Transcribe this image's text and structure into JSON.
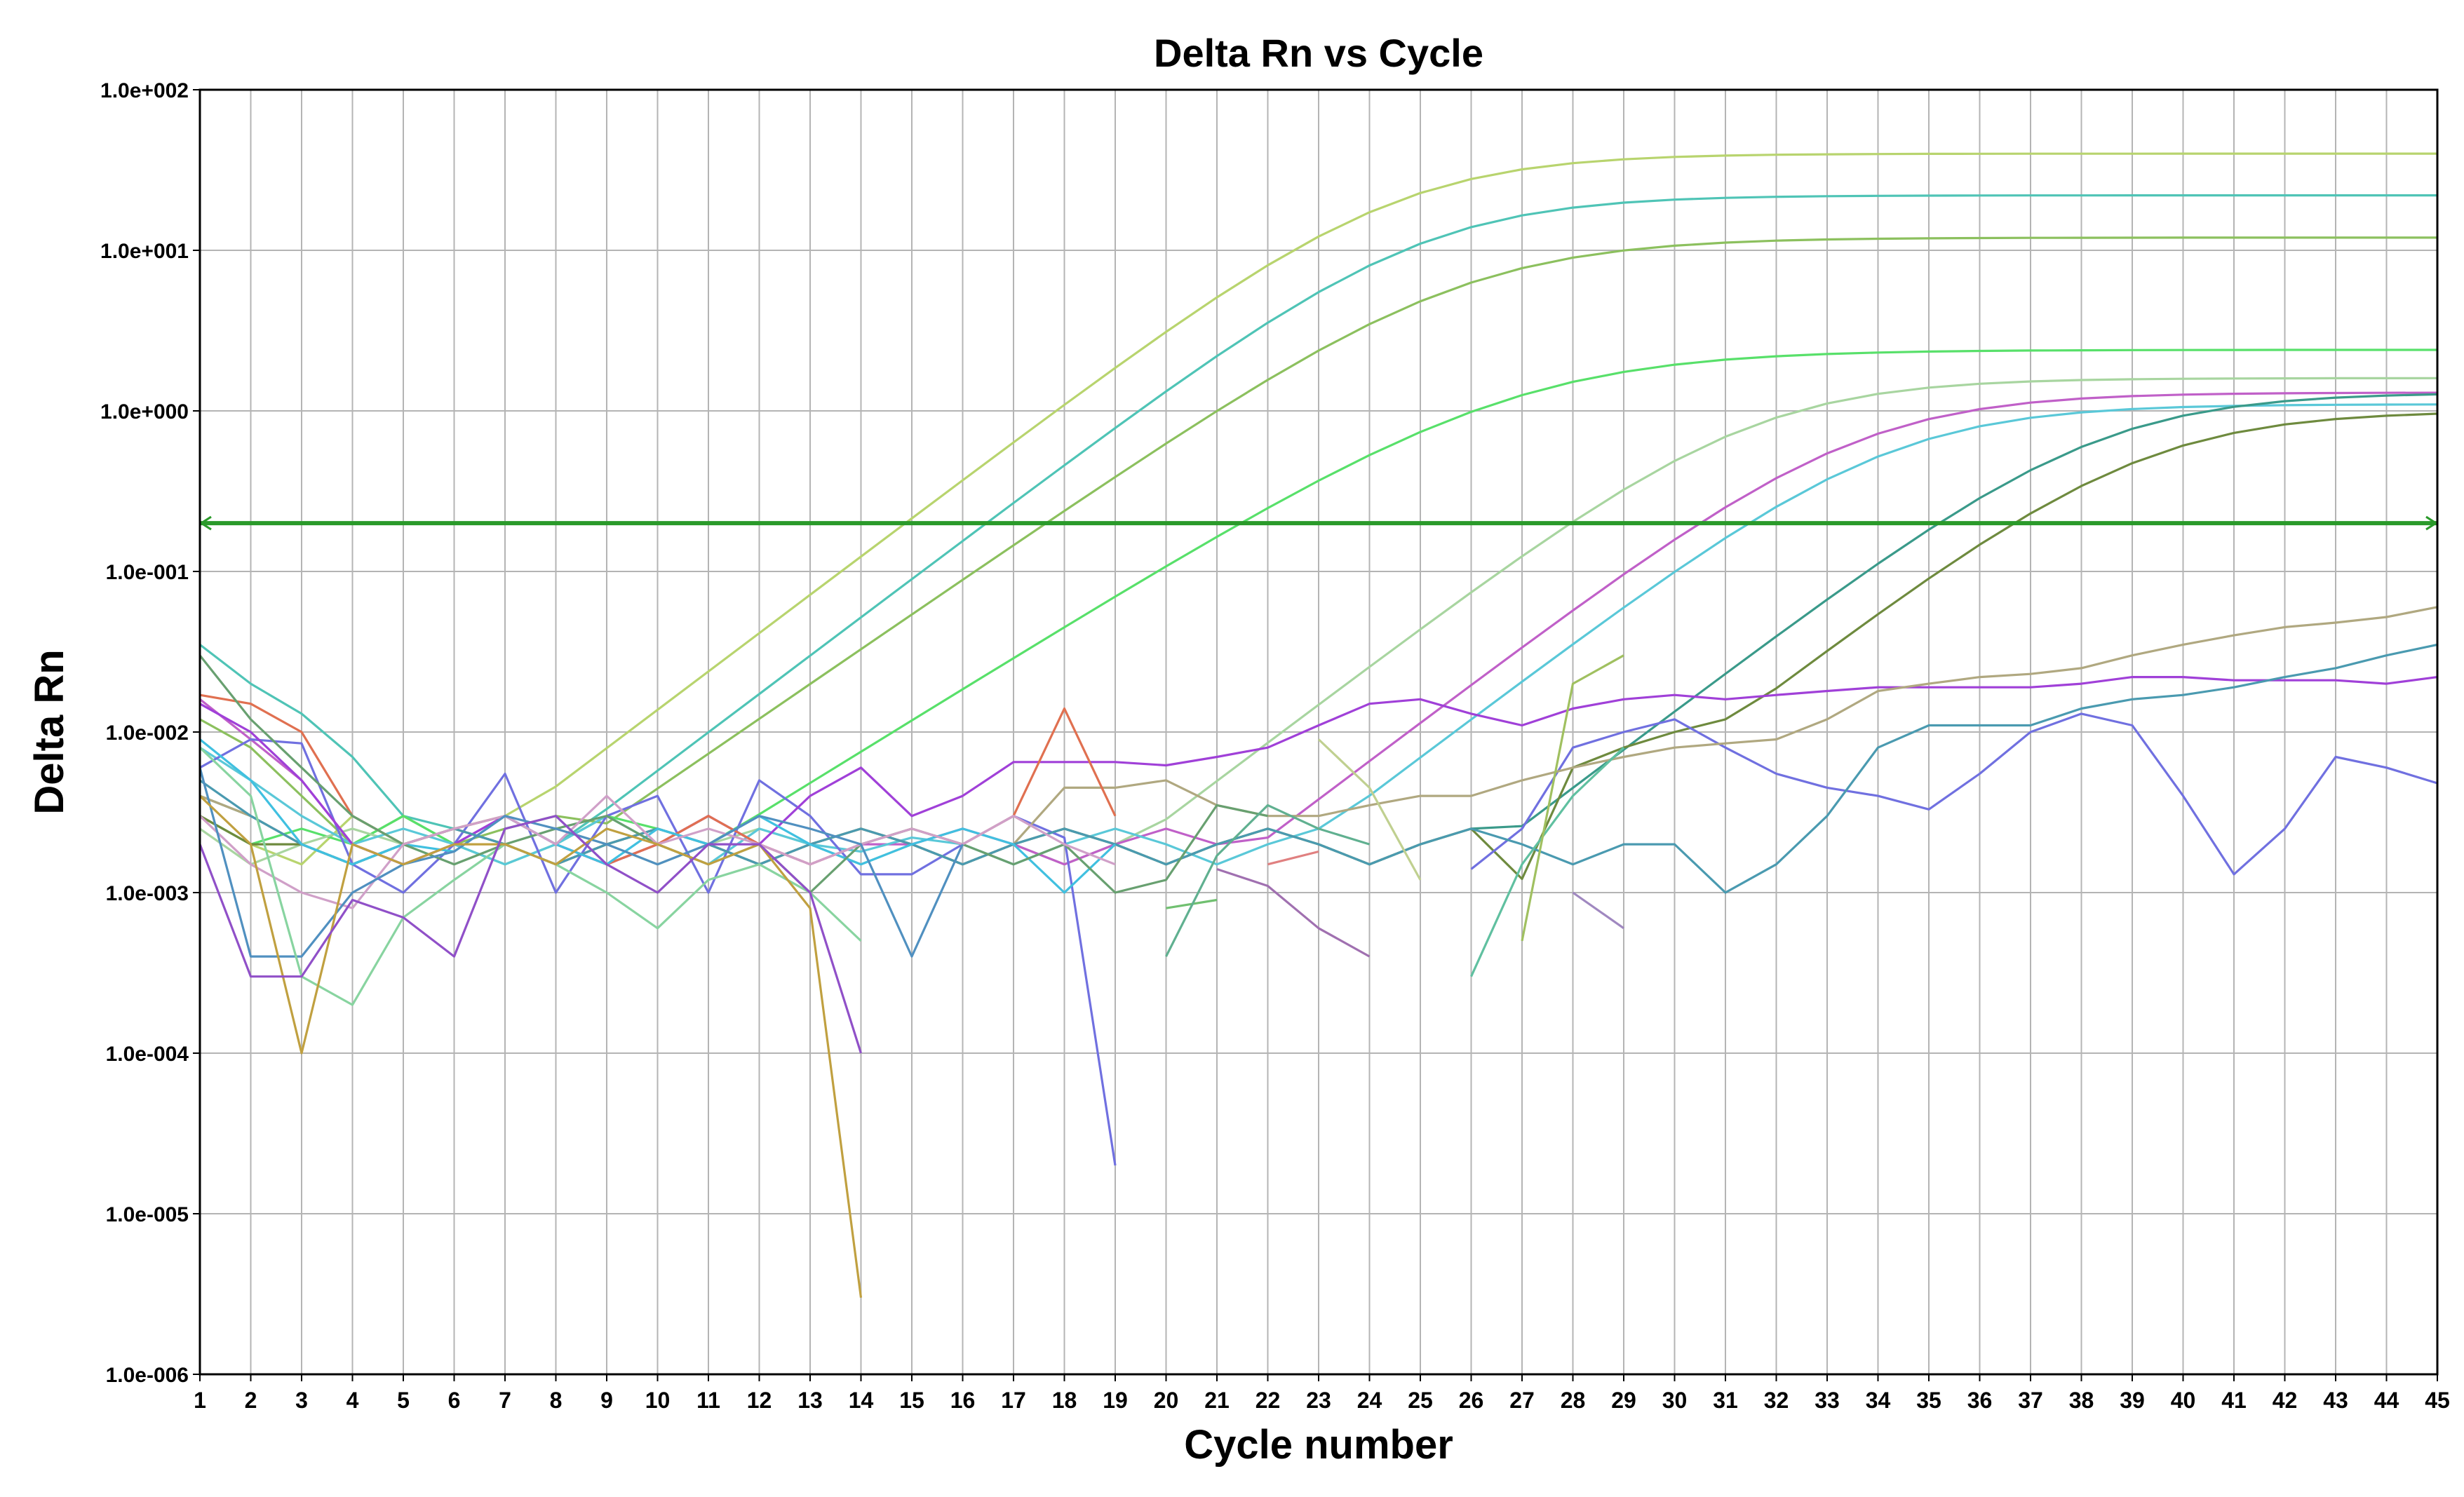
{
  "chart_data": {
    "type": "line",
    "title": "Delta Rn vs Cycle",
    "xlabel": "Cycle number",
    "ylabel": "Delta Rn",
    "y_scale": "log",
    "xlim": [
      1,
      45
    ],
    "ylim": [
      1e-06,
      100
    ],
    "grid": true,
    "legend": "none",
    "x_ticks": [
      "1",
      "2",
      "3",
      "4",
      "5",
      "6",
      "7",
      "8",
      "9",
      "10",
      "11",
      "12",
      "13",
      "14",
      "15",
      "16",
      "17",
      "18",
      "19",
      "20",
      "21",
      "22",
      "23",
      "24",
      "25",
      "26",
      "27",
      "28",
      "29",
      "30",
      "31",
      "32",
      "33",
      "34",
      "35",
      "36",
      "37",
      "38",
      "39",
      "40",
      "41",
      "42",
      "43",
      "44",
      "45"
    ],
    "y_ticks": [
      "1.0e-006",
      "1.0e-005",
      "1.0e-004",
      "1.0e-003",
      "1.0e-002",
      "1.0e-001",
      "1.0e+000",
      "1.0e+001",
      "1.0e+002"
    ],
    "threshold": 0.2,
    "colors": {
      "grid": "#b4b4b4",
      "axis": "#000000",
      "threshold": "#2a9a2a"
    },
    "series": [
      {
        "color": "#b8d46e",
        "ct": 24.5,
        "plateau": 40,
        "k": 0.55,
        "base": [
          0.003,
          0.002,
          0.0015,
          0.003,
          0.002,
          0.0025,
          0.003,
          0.002,
          0.0015,
          0.002,
          0.003,
          0.002,
          0.0018,
          0.002,
          0.0022,
          0.002,
          0.002,
          0.0025,
          0.002,
          0.002,
          0.002,
          0.002
        ]
      },
      {
        "color": "#4fc4b6",
        "ct": 25.0,
        "plateau": 22,
        "k": 0.55,
        "base": [
          0.035,
          0.02,
          0.013,
          0.007,
          0.003,
          0.0025,
          0.003,
          0.002,
          0.003,
          0.0025,
          0.002,
          0.003,
          0.0025,
          0.002,
          0.002,
          0.002,
          0.0015,
          0.002,
          0.0012,
          0.0015,
          0.002,
          0.0025
        ]
      },
      {
        "color": "#8cc05e",
        "ct": 25.8,
        "plateau": 12,
        "k": 0.5,
        "base": [
          0.012,
          0.008,
          0.004,
          0.002,
          0.003,
          0.002,
          0.0025,
          0.003,
          0.002,
          0.003,
          0.002,
          0.0025,
          0.0015,
          0.002,
          0.0025,
          0.003,
          0.002,
          0.0025,
          0.002,
          0.002,
          0.0025,
          0.003
        ]
      },
      {
        "color": "#58e06a",
        "ct": 26.8,
        "plateau": 2.4,
        "k": 0.45,
        "base": [
          0.003,
          0.002,
          0.0025,
          0.002,
          0.003,
          0.002,
          0.0015,
          0.002,
          0.003,
          0.0025,
          0.002,
          0.0015,
          0.002,
          0.0025,
          0.002,
          0.002,
          0.0025,
          0.0025,
          0.002,
          0.002,
          0.0025,
          0.003
        ]
      },
      {
        "color": "#a8d5a0",
        "ct": 31.5,
        "plateau": 1.6,
        "k": 0.55,
        "base": [
          0.0025,
          0.0015,
          0.002,
          0.0025,
          0.002,
          0.0015,
          0.002,
          0.0025,
          0.002,
          0.0015,
          0.002,
          0.0025,
          0.002,
          0.0015,
          0.002,
          0.0025,
          0.002,
          0.0015,
          0.002,
          0.0025,
          0.002,
          0.0015,
          0.002,
          0.0025,
          0.002,
          0.0015,
          0.002,
          0.002,
          0.002
        ]
      },
      {
        "color": "#c060c8",
        "ct": 33.6,
        "plateau": 1.3,
        "k": 0.55,
        "base": [
          0.016,
          0.009,
          0.005,
          0.002,
          0.0015,
          0.002,
          0.003,
          0.002,
          0.0015,
          0.002,
          0.003,
          0.002,
          0.0015,
          0.002,
          0.002,
          0.0025,
          0.002,
          0.0015,
          0.002,
          0.0025,
          0.002,
          0.0015,
          0.002,
          0.0025,
          0.002,
          0.0015,
          0.002,
          0.002,
          0.002,
          0.002
        ]
      },
      {
        "color": "#5ac8d8",
        "ct": 34.2,
        "plateau": 1.1,
        "k": 0.55,
        "base": [
          0.008,
          0.005,
          0.003,
          0.002,
          0.0025,
          0.002,
          0.0015,
          0.002,
          0.003,
          0.002,
          0.0015,
          0.0025,
          0.002,
          0.0018,
          0.0022,
          0.002,
          0.0015,
          0.002,
          0.0025,
          0.002,
          0.0015,
          0.002,
          0.0025,
          0.002,
          0.0015,
          0.002,
          0.0025,
          0.002,
          0.0015,
          0.002,
          0.002
        ]
      },
      {
        "color": "#3a9a8a",
        "ct": 38.3,
        "plateau": 1.3,
        "k": 0.55,
        "base": [
          0.004,
          0.003,
          0.002,
          0.0015,
          0.002,
          0.0025,
          0.002,
          0.0015,
          0.002,
          0.0025,
          0.002,
          0.0015,
          0.002,
          0.0025,
          0.002,
          0.0015,
          0.002,
          0.0025,
          0.002,
          0.0015,
          0.002,
          0.0025,
          0.002,
          0.0015,
          0.002,
          0.0025,
          0.002,
          0.0015,
          0.002,
          0.002,
          0.001,
          0.0015,
          0.003,
          0.008,
          0.02
        ]
      },
      {
        "color": "#6e8a3e",
        "ct": 39.2,
        "plateau": 1.0,
        "k": 0.55,
        "base": [
          0.003,
          0.002,
          0.002,
          0.0015,
          0.002,
          0.0025,
          0.002,
          0.0015,
          0.002,
          0.0025,
          0.002,
          0.0015,
          0.002,
          0.0025,
          0.002,
          0.0015,
          0.002,
          0.0025,
          0.002,
          0.0015,
          0.002,
          0.0025,
          0.002,
          0.0015,
          0.002,
          0.0025,
          0.0005,
          0.006,
          0.008,
          0.01,
          0.012,
          0.015,
          0.02,
          0.025,
          0.025,
          0.024
        ]
      },
      {
        "color": "#7070e0",
        "raw": [
          0.006,
          0.009,
          0.0085,
          0.0015,
          0.001,
          0.002,
          0.0055,
          0.001,
          0.003,
          0.004,
          0.001,
          0.005,
          0.003,
          0.0013,
          0.0013,
          0.002,
          0.003,
          0.0022,
          2e-05,
          null,
          null,
          null,
          null,
          null,
          null,
          0.0014,
          0.0025,
          0.008,
          0.01,
          0.012,
          0.008,
          0.0055,
          0.0045,
          0.004,
          0.0033,
          0.0055,
          0.01,
          0.013,
          0.011,
          0.004,
          0.0013,
          0.0025,
          0.007,
          0.006,
          0.0048
        ]
      },
      {
        "color": "#a040d8",
        "raw": [
          0.015,
          0.01,
          0.005,
          0.002,
          0.0015,
          0.002,
          0.003,
          0.002,
          0.0015,
          0.002,
          0.003,
          0.002,
          0.004,
          0.006,
          0.003,
          0.004,
          0.0065,
          0.0065,
          0.0065,
          0.0062,
          0.007,
          0.008,
          0.011,
          0.015,
          0.016,
          0.013,
          0.011,
          0.014,
          0.016,
          0.017,
          0.016,
          0.017,
          0.018,
          0.019,
          0.019,
          0.019,
          0.019,
          0.02,
          0.022,
          0.022,
          0.021,
          0.021,
          0.021,
          0.02,
          0.022
        ]
      },
      {
        "color": "#b0a880",
        "raw": [
          0.004,
          0.003,
          0.002,
          0.0015,
          0.002,
          0.0025,
          0.002,
          0.0015,
          0.002,
          0.0025,
          0.002,
          0.0015,
          0.002,
          0.0025,
          0.002,
          0.0015,
          0.002,
          0.0045,
          0.0045,
          0.005,
          0.0035,
          0.003,
          0.003,
          0.0035,
          0.004,
          0.004,
          0.005,
          0.006,
          0.007,
          0.008,
          0.0085,
          0.009,
          0.012,
          0.018,
          0.02,
          0.022,
          0.023,
          0.025,
          0.03,
          0.035,
          0.04,
          0.045,
          0.048,
          0.052,
          0.06
        ]
      },
      {
        "color": "#4a9ab0",
        "raw": [
          0.005,
          0.003,
          0.002,
          0.0015,
          0.002,
          0.0025,
          0.002,
          0.0015,
          0.002,
          0.0025,
          0.002,
          0.0015,
          0.002,
          0.0025,
          0.002,
          0.0015,
          0.002,
          0.0025,
          0.002,
          0.0015,
          0.002,
          0.0025,
          0.002,
          0.0015,
          0.002,
          0.0025,
          0.002,
          0.0015,
          0.002,
          0.002,
          0.001,
          0.0015,
          0.003,
          0.008,
          0.011,
          0.011,
          0.011,
          0.014,
          0.016,
          0.017,
          0.019,
          0.022,
          0.025,
          0.03,
          0.035
        ]
      },
      {
        "color": "#e07050",
        "raw": [
          0.017,
          0.015,
          0.01,
          0.003,
          0.002,
          0.0025,
          0.003,
          0.002,
          0.0015,
          0.002,
          0.003,
          0.002,
          0.0015,
          0.002,
          0.0025,
          0.002,
          0.003,
          0.014,
          0.003
        ]
      },
      {
        "color": "#40c0e0",
        "raw": [
          0.009,
          0.005,
          0.002,
          0.0015,
          0.002,
          0.0018,
          0.003,
          0.002,
          0.0015,
          0.0025,
          0.002,
          0.003,
          0.002,
          0.0015,
          0.002,
          0.0025,
          0.002,
          0.001,
          0.002
        ]
      },
      {
        "color": "#68a070",
        "raw": [
          0.03,
          0.012,
          0.006,
          0.003,
          0.002,
          0.0015,
          0.002,
          0.0025,
          0.003,
          0.002,
          0.0015,
          0.002,
          0.001,
          0.002,
          0.0025,
          0.002,
          0.0015,
          0.002,
          0.001,
          0.0012,
          0.0035,
          0.003
        ]
      },
      {
        "color": "#d0a0c8",
        "raw": [
          0.003,
          0.0015,
          0.001,
          0.0008,
          0.002,
          0.0025,
          0.003,
          0.002,
          0.004,
          0.002,
          0.0025,
          0.002,
          0.0015,
          0.002,
          0.0025,
          0.002,
          0.003,
          0.002,
          0.0015
        ]
      },
      {
        "color": "#5090c0",
        "raw": [
          0.006,
          0.0004,
          0.0004,
          0.001,
          0.0015,
          0.0018,
          0.003,
          0.0025,
          0.002,
          0.0015,
          0.002,
          0.003,
          0.0025,
          0.002,
          0.0004,
          0.002
        ]
      },
      {
        "color": "#88d4a0",
        "raw": [
          0.008,
          0.004,
          0.0003,
          0.0002,
          0.0007,
          0.0012,
          0.002,
          0.0015,
          0.001,
          0.0006,
          0.0012,
          0.0015,
          0.001,
          0.0005
        ]
      },
      {
        "color": "#c0a040",
        "raw": [
          0.004,
          0.002,
          0.0001,
          0.002,
          0.0015,
          0.002,
          0.002,
          0.0015,
          0.0025,
          0.002,
          0.0015,
          0.002,
          0.0008,
          3e-06
        ]
      },
      {
        "color": "#9050c8",
        "raw": [
          0.002,
          0.0003,
          0.0003,
          0.0009,
          0.0007,
          0.0004,
          0.0025,
          0.003,
          0.0015,
          0.001,
          0.002,
          0.002,
          0.001,
          0.0001
        ]
      },
      {
        "color": "#70c070",
        "raw": [
          null,
          null,
          null,
          null,
          null,
          null,
          null,
          null,
          null,
          null,
          null,
          null,
          null,
          null,
          null,
          null,
          null,
          null,
          null,
          0.0008,
          0.0009
        ]
      },
      {
        "color": "#e08080",
        "raw": [
          null,
          null,
          null,
          null,
          null,
          null,
          null,
          null,
          null,
          null,
          null,
          null,
          null,
          null,
          null,
          null,
          null,
          null,
          null,
          null,
          null,
          0.0015,
          0.0018
        ]
      },
      {
        "color": "#a070b0",
        "raw": [
          null,
          null,
          null,
          null,
          null,
          null,
          null,
          null,
          null,
          null,
          null,
          null,
          null,
          null,
          null,
          null,
          null,
          null,
          null,
          null,
          0.0014,
          0.0011,
          0.0006,
          0.0004
        ]
      },
      {
        "color": "#60b090",
        "raw": [
          null,
          null,
          null,
          null,
          null,
          null,
          null,
          null,
          null,
          null,
          null,
          null,
          null,
          null,
          null,
          null,
          null,
          null,
          null,
          0.0004,
          0.0017,
          0.0035,
          0.0025,
          0.002
        ]
      },
      {
        "color": "#c0d090",
        "raw": [
          null,
          null,
          null,
          null,
          null,
          null,
          null,
          null,
          null,
          null,
          null,
          null,
          null,
          null,
          null,
          null,
          null,
          null,
          null,
          null,
          null,
          null,
          0.009,
          0.0045,
          0.0012,
          null,
          null,
          null,
          null
        ]
      },
      {
        "color": "#a088c0",
        "raw": [
          null,
          null,
          null,
          null,
          null,
          null,
          null,
          null,
          null,
          null,
          null,
          null,
          null,
          null,
          null,
          null,
          null,
          null,
          null,
          null,
          null,
          null,
          null,
          null,
          null,
          null,
          null,
          0.001,
          0.0006
        ]
      },
      {
        "color": "#60c0a0",
        "raw": [
          null,
          null,
          null,
          null,
          null,
          null,
          null,
          null,
          null,
          null,
          null,
          null,
          null,
          null,
          null,
          null,
          null,
          null,
          null,
          null,
          null,
          null,
          null,
          null,
          null,
          0.0003,
          0.0015,
          0.004,
          0.008
        ]
      },
      {
        "color": "#a0c060",
        "raw": [
          null,
          null,
          null,
          null,
          null,
          null,
          null,
          null,
          null,
          null,
          null,
          null,
          null,
          null,
          null,
          null,
          null,
          null,
          null,
          null,
          null,
          null,
          null,
          null,
          null,
          null,
          0.0005,
          0.02,
          0.03
        ]
      }
    ]
  }
}
